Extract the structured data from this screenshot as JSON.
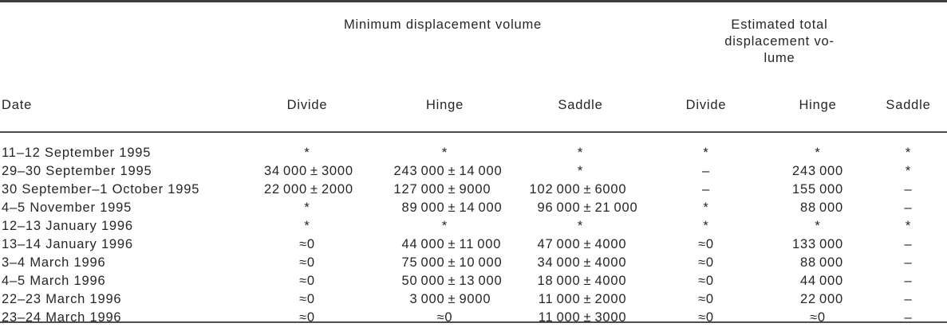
{
  "table": {
    "group_headers": {
      "minimum": "Minimum displacement volume",
      "estimated": "Estimated total displacement vo-lume"
    },
    "columns": [
      "Date",
      "Divide",
      "Hinge",
      "Saddle",
      "Divide",
      "Hinge",
      "Saddle"
    ],
    "rows": [
      {
        "date": "11–12 September 1995",
        "cells": [
          "*",
          "*",
          "*",
          "*",
          "*",
          "*"
        ]
      },
      {
        "date": "29–30 September 1995",
        "cells": [
          "34 000 ± 3000",
          "243 000 ± 14 000",
          "*",
          "–",
          "243 000",
          "*"
        ]
      },
      {
        "date": "30 September–1 October 1995",
        "cells": [
          "22 000 ± 2000",
          "127 000 ± 9000",
          "102 000 ± 6000",
          "–",
          "155 000",
          "–"
        ]
      },
      {
        "date": "4–5 November 1995",
        "cells": [
          "*",
          "89 000 ± 14 000",
          "96 000 ± 21 000",
          "*",
          "88 000",
          "–"
        ]
      },
      {
        "date": "12–13 January 1996",
        "cells": [
          "*",
          "*",
          "*",
          "*",
          "*",
          "*"
        ]
      },
      {
        "date": "13–14 January 1996",
        "cells": [
          "≈0",
          "44 000 ± 11 000",
          "47 000 ± 4000",
          "≈0",
          "133 000",
          "–"
        ]
      },
      {
        "date": "3–4 March 1996",
        "cells": [
          "≈0",
          "75 000 ± 10 000",
          "34 000 ± 4000",
          "≈0",
          "88 000",
          "–"
        ]
      },
      {
        "date": "4–5 March 1996",
        "cells": [
          "≈0",
          "50 000 ± 13 000",
          "18 000 ± 4000",
          "≈0",
          "44 000",
          "–"
        ]
      },
      {
        "date": "22–23 March 1996",
        "cells": [
          "≈0",
          "3 000 ± 9000",
          "11 000 ± 2000",
          "≈0",
          "22 000",
          "–"
        ]
      },
      {
        "date": "23–24 March 1996",
        "cells": [
          "≈0",
          "≈0",
          "11 000 ± 3000",
          "≈0",
          "≈0",
          "–"
        ]
      }
    ]
  }
}
